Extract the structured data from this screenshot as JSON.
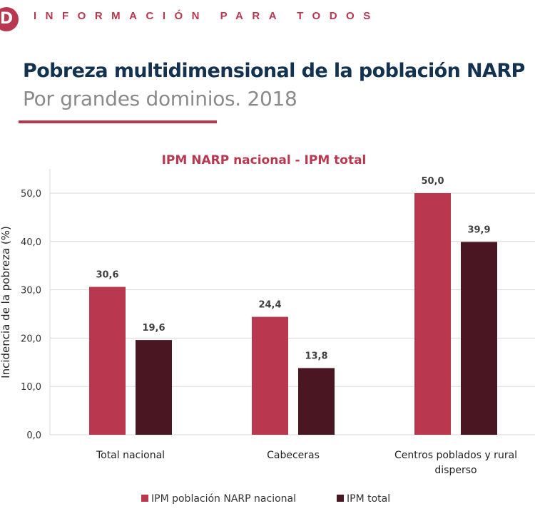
{
  "header": {
    "logo": "D",
    "tagline": "INFORMACIÓN PARA TODOS",
    "title": "Pobreza multidimensional de la población NARP",
    "subtitle": "Por grandes dominios. 2018"
  },
  "colors": {
    "accent": "#b9374f",
    "dark": "#4a1622",
    "title": "#13324f"
  },
  "chart_data": {
    "type": "bar",
    "title": "IPM NARP nacional - IPM total",
    "ylabel": "Incidencia de la pobreza (%)",
    "xlabel": "",
    "ylim": [
      0,
      55
    ],
    "yticks": [
      "0,0",
      "10,0",
      "20,0",
      "30,0",
      "40,0",
      "50,0"
    ],
    "categories": [
      [
        "Total nacional"
      ],
      [
        "Cabeceras"
      ],
      [
        "Centros poblados y rural",
        "disperso"
      ]
    ],
    "series": [
      {
        "name": "IPM población NARP nacional",
        "values": [
          30.6,
          24.4,
          50.0
        ],
        "labels": [
          "30,6",
          "24,4",
          "50,0"
        ],
        "color": "#b9374f"
      },
      {
        "name": "IPM total",
        "values": [
          19.6,
          13.8,
          39.9
        ],
        "labels": [
          "19,6",
          "13,8",
          "39,9"
        ],
        "color": "#4a1622"
      }
    ],
    "grid": true,
    "legend": "bottom"
  }
}
